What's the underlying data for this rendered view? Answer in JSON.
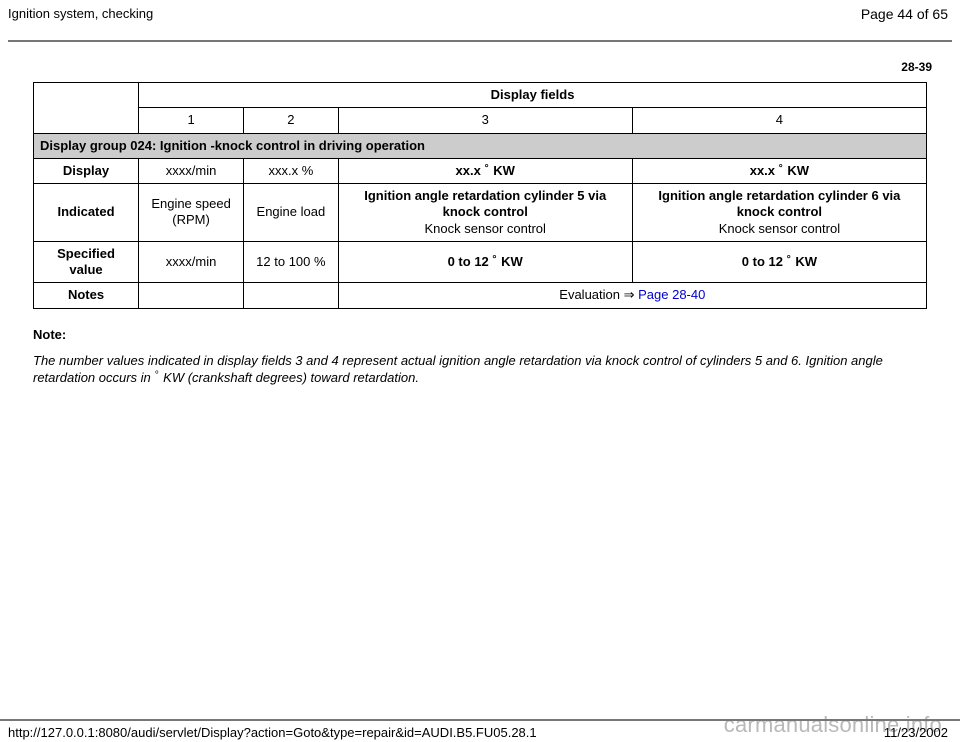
{
  "header": {
    "title": "Ignition system, checking",
    "page_counter": "Page 44 of 65"
  },
  "section_id": "28-39",
  "table": {
    "display_fields_label": "Display fields",
    "col_headers": {
      "c1": "1",
      "c2": "2",
      "c3": "3",
      "c4": "4"
    },
    "group_row": "Display group 024: Ignition -knock control in driving operation",
    "rows": {
      "display": {
        "label": "Display",
        "c1": "xxxx/min",
        "c2": "xxx.x %",
        "c3_pre": "xx.x ",
        "c3_post": " KW",
        "c4_pre": "xx.x ",
        "c4_post": " KW"
      },
      "indicated": {
        "label": "Indicated",
        "c1": "Engine speed (RPM)",
        "c2": "Engine load",
        "c3_line1": "Ignition angle retardation cylinder 5 via knock control",
        "c3_line2": "Knock sensor control",
        "c4_line1": "Ignition angle retardation cylinder 6 via knock control",
        "c4_line2": "Knock sensor control"
      },
      "specified": {
        "label": "Specified value",
        "c1": "xxxx/min",
        "c2": "12 to 100 %",
        "c3_pre": "0 to 12 ",
        "c3_post": " KW",
        "c4_pre": "0 to 12 ",
        "c4_post": " KW"
      },
      "notes": {
        "label": "Notes",
        "eval_text": "Evaluation ",
        "eval_arrow": "⇒",
        "eval_link": " Page 28-40"
      }
    }
  },
  "note": {
    "heading": "Note:",
    "body_pre": "The number values indicated in display fields 3 and 4 represent actual ignition angle retardation via knock control of cylinders 5 and 6. Ignition angle retardation occurs in ",
    "body_post": " KW (crankshaft degrees) toward retardation."
  },
  "footer": {
    "url": "http://127.0.0.1:8080/audi/servlet/Display?action=Goto&type=repair&id=AUDI.B5.FU05.28.1",
    "date": "11/23/2002"
  },
  "watermark": "carmanualsonline.info",
  "degree": "°"
}
